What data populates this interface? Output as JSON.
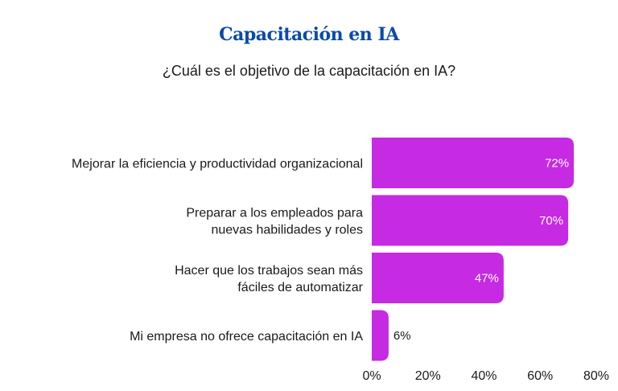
{
  "chart_data": {
    "type": "bar",
    "orientation": "horizontal",
    "title": "Capacitación en IA",
    "subtitle": "¿Cuál es el objetivo de la capacitación en IA?",
    "categories": [
      [
        "Mejorar la eficiencia y productividad organizacional"
      ],
      [
        "Preparar a los empleados para",
        "nuevas habilidades y roles"
      ],
      [
        "Hacer que los trabajos sean más",
        "fáciles de automatizar"
      ],
      [
        "Mi empresa no ofrece capacitación en IA"
      ]
    ],
    "values": [
      72,
      70,
      47,
      6
    ],
    "data_labels": [
      "72%",
      "70%",
      "47%",
      "6%"
    ],
    "xlim": [
      0,
      80
    ],
    "x_ticks": [
      "0%",
      "20%",
      "40%",
      "60%",
      "80%"
    ],
    "grid": false,
    "bar_color": "#c62ae3"
  }
}
